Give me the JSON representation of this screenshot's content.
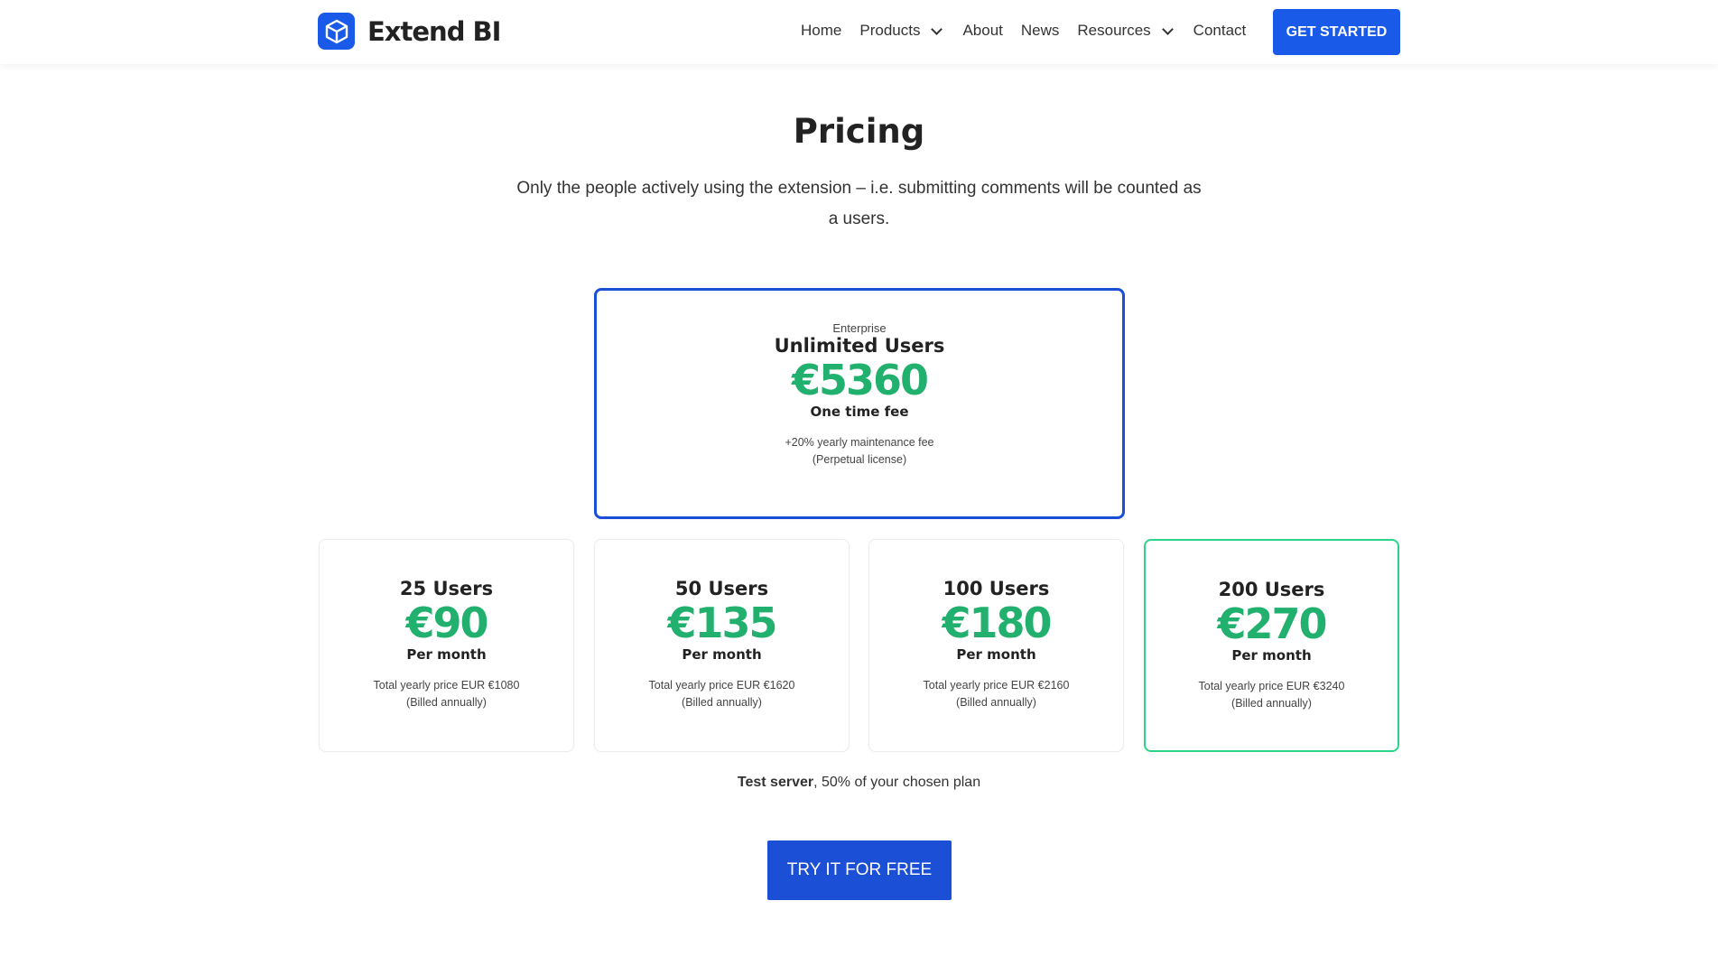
{
  "header": {
    "brand": "Extend BI",
    "nav": [
      "Home",
      "Products",
      "About",
      "News",
      "Resources",
      "Contact"
    ],
    "cta": "GET STARTED"
  },
  "main": {
    "title": "Pricing",
    "subtitle": "Only the people actively using the extension – i.e. submitting comments will be counted as a users.",
    "enterprise": {
      "label": "Enterprise",
      "users": "Unlimited Users",
      "price": "€5360",
      "period": "One time fee",
      "note1": "+20% yearly maintenance fee",
      "note2": "(Perpetual license)"
    },
    "plans": [
      {
        "users": "25 Users",
        "price": "€90",
        "period": "Per month",
        "note1": "Total yearly price EUR €1080",
        "note2": "(Billed annually)"
      },
      {
        "users": "50 Users",
        "price": "€135",
        "period": "Per month",
        "note1": "Total yearly price EUR €1620",
        "note2": "(Billed annually)"
      },
      {
        "users": "100 Users",
        "price": "€180",
        "period": "Per month",
        "note1": "Total yearly price EUR €2160",
        "note2": "(Billed annually)"
      },
      {
        "users": "200 Users",
        "price": "€270",
        "period": "Per month",
        "note1": "Total yearly price EUR €3240",
        "note2": "(Billed annually)"
      }
    ],
    "test_bold": "Test server",
    "test_rest": ", 50% of your chosen plan",
    "try": "TRY IT FOR FREE"
  },
  "colors": {
    "accent": "#1a5ae8",
    "price": "#21b06e",
    "highlight": "#2ed38a"
  }
}
